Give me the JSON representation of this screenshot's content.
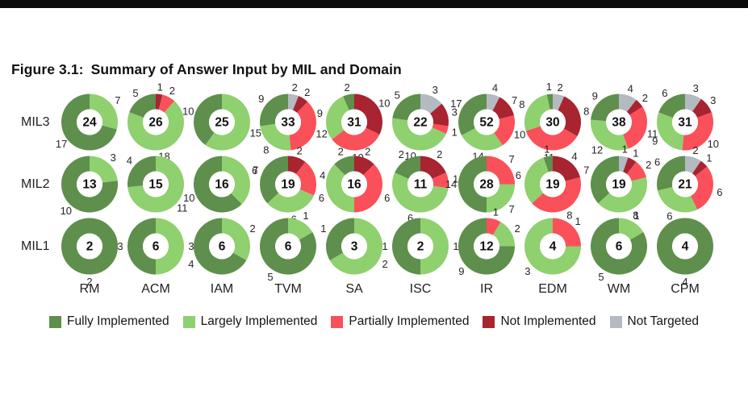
{
  "page": {
    "title_prefix": "Figure 3.1:",
    "title_rest": "Summary of Answer Input by MIL and Domain"
  },
  "chart_data": {
    "type": "pie",
    "variant": "donut-grid",
    "title": "Figure 3.1: Summary of Answer Input by MIL and Domain",
    "legend_position": "bottom",
    "categories": [
      "Fully Implemented",
      "Largely Implemented",
      "Partially Implemented",
      "Not Implemented",
      "Not Targeted"
    ],
    "colors": [
      "#5e8f4c",
      "#8fd06f",
      "#fa5059",
      "#a72430",
      "#b4bac1"
    ],
    "rows": [
      "MIL3",
      "MIL2",
      "MIL1"
    ],
    "columns": [
      "RM",
      "ACM",
      "IAM",
      "TVM",
      "SA",
      "ISC",
      "IR",
      "EDM",
      "WM",
      "CPM"
    ],
    "values": {
      "MIL3": {
        "RM": [
          17,
          7,
          0,
          0,
          0
        ],
        "ACM": [
          5,
          18,
          2,
          1,
          0
        ],
        "IAM": [
          10,
          15,
          0,
          0,
          0
        ],
        "TVM": [
          9,
          8,
          12,
          2,
          2
        ],
        "SA": [
          2,
          9,
          10,
          10,
          0
        ],
        "ISC": [
          5,
          10,
          1,
          3,
          3
        ],
        "IR": [
          17,
          14,
          10,
          7,
          4
        ],
        "EDM": [
          1,
          8,
          11,
          8,
          2
        ],
        "WM": [
          9,
          12,
          11,
          2,
          4
        ],
        "CPM": [
          6,
          9,
          10,
          3,
          3
        ]
      },
      "MIL2": {
        "RM": [
          10,
          3,
          0,
          0,
          0
        ],
        "ACM": [
          4,
          11,
          0,
          0,
          0
        ],
        "IAM": [
          10,
          6,
          0,
          0,
          0
        ],
        "TVM": [
          7,
          6,
          4,
          2,
          0
        ],
        "SA": [
          2,
          6,
          6,
          2,
          0
        ],
        "ISC": [
          2,
          6,
          1,
          2,
          0
        ],
        "IR": [
          14,
          7,
          7,
          0,
          0
        ],
        "EDM": [
          1,
          6,
          8,
          4,
          0
        ],
        "WM": [
          7,
          8,
          2,
          1,
          1
        ],
        "CPM": [
          6,
          6,
          6,
          1,
          2
        ]
      },
      "MIL1": {
        "RM": [
          2,
          0,
          0,
          0,
          0
        ],
        "ACM": [
          3,
          3,
          0,
          0,
          0
        ],
        "IAM": [
          4,
          2,
          0,
          0,
          0
        ],
        "TVM": [
          5,
          1,
          0,
          0,
          0
        ],
        "SA": [
          1,
          2,
          0,
          0,
          0
        ],
        "ISC": [
          1,
          1,
          0,
          0,
          0
        ],
        "IR": [
          9,
          2,
          1,
          0,
          0
        ],
        "EDM": [
          0,
          3,
          1,
          0,
          0
        ],
        "WM": [
          5,
          1,
          0,
          0,
          0
        ],
        "CPM": [
          4,
          0,
          0,
          0,
          0
        ]
      }
    },
    "totals": {
      "MIL3": {
        "RM": 24,
        "ACM": 26,
        "IAM": 25,
        "TVM": 33,
        "SA": 31,
        "ISC": 22,
        "IR": 52,
        "EDM": 30,
        "WM": 38,
        "CPM": 31
      },
      "MIL2": {
        "RM": 13,
        "ACM": 15,
        "IAM": 16,
        "TVM": 19,
        "SA": 16,
        "ISC": 11,
        "IR": 28,
        "EDM": 19,
        "WM": 19,
        "CPM": 21
      },
      "MIL1": {
        "RM": 2,
        "ACM": 6,
        "IAM": 6,
        "TVM": 6,
        "SA": 3,
        "ISC": 2,
        "IR": 12,
        "EDM": 4,
        "WM": 6,
        "CPM": 4
      }
    }
  }
}
